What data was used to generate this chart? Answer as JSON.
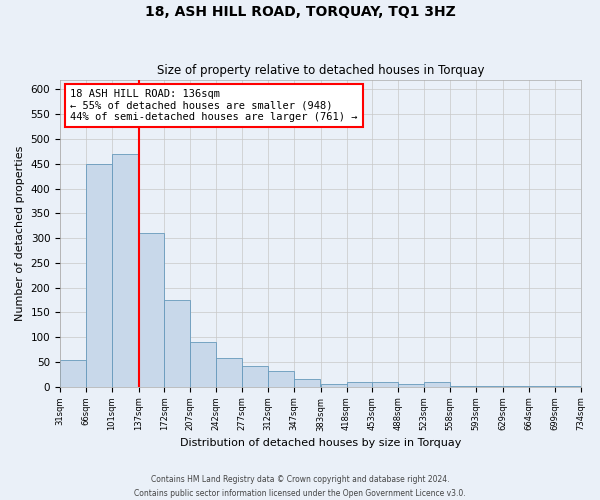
{
  "title": "18, ASH HILL ROAD, TORQUAY, TQ1 3HZ",
  "subtitle": "Size of property relative to detached houses in Torquay",
  "xlabel": "Distribution of detached houses by size in Torquay",
  "ylabel": "Number of detached properties",
  "bin_edges": [
    31,
    66,
    101,
    137,
    172,
    207,
    242,
    277,
    312,
    347,
    383,
    418,
    453,
    488,
    523,
    558,
    593,
    629,
    664,
    699,
    734
  ],
  "bin_labels": [
    "31sqm",
    "66sqm",
    "101sqm",
    "137sqm",
    "172sqm",
    "207sqm",
    "242sqm",
    "277sqm",
    "312sqm",
    "347sqm",
    "383sqm",
    "418sqm",
    "453sqm",
    "488sqm",
    "523sqm",
    "558sqm",
    "593sqm",
    "629sqm",
    "664sqm",
    "699sqm",
    "734sqm"
  ],
  "counts": [
    55,
    450,
    470,
    310,
    175,
    90,
    58,
    42,
    32,
    15,
    5,
    9,
    9,
    5,
    9,
    1,
    1,
    1,
    1,
    2
  ],
  "bar_facecolor": "#c8d8ea",
  "bar_edgecolor": "#6699bb",
  "reference_line_x": 137,
  "reference_line_color": "red",
  "annotation_text": "18 ASH HILL ROAD: 136sqm\n← 55% of detached houses are smaller (948)\n44% of semi-detached houses are larger (761) →",
  "annotation_box_edgecolor": "red",
  "annotation_box_facecolor": "white",
  "ylim": [
    0,
    620
  ],
  "yticks": [
    0,
    50,
    100,
    150,
    200,
    250,
    300,
    350,
    400,
    450,
    500,
    550,
    600
  ],
  "footer_line1": "Contains HM Land Registry data © Crown copyright and database right 2024.",
  "footer_line2": "Contains public sector information licensed under the Open Government Licence v3.0.",
  "background_color": "#eaf0f8",
  "grid_color": "#c8c8c8"
}
